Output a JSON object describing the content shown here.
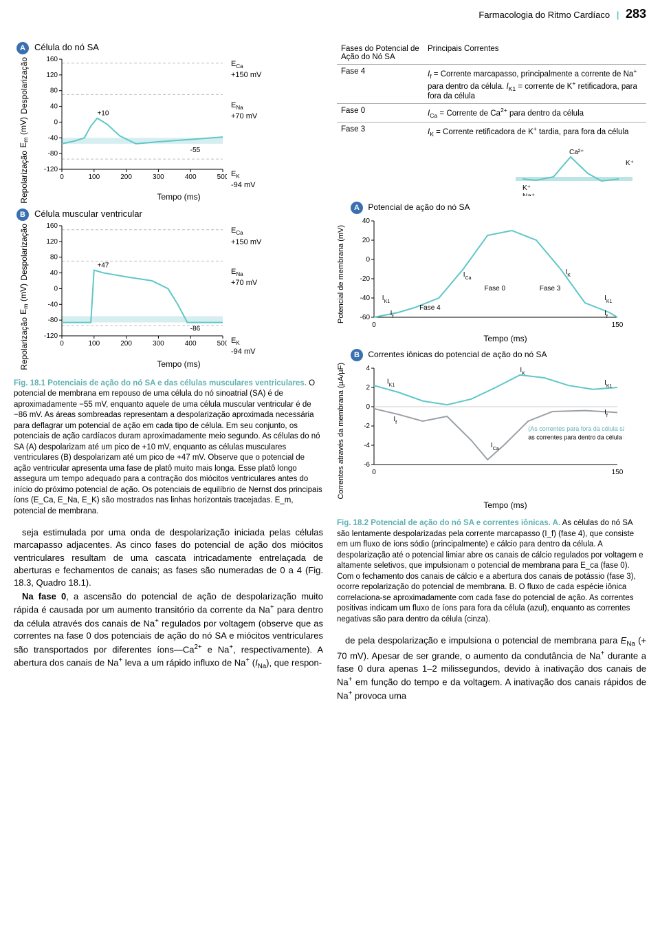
{
  "header": {
    "chapter": "Farmacologia do Ritmo Cardíaco",
    "page": "283"
  },
  "chartA": {
    "title": "Célula do nó SA",
    "ylabel": "E_m (mV)",
    "depol": "Despolarização",
    "repol": "Repolarização",
    "xlabel": "Tempo (ms)",
    "yTicks": [
      160,
      120,
      80,
      40,
      0,
      -40,
      -80,
      -120
    ],
    "xTicks": [
      0,
      100,
      200,
      300,
      400,
      500
    ],
    "peak": "+10",
    "rest": "-55",
    "ECa": "E_Ca +150 mV",
    "ENa": "E_Na +70 mV",
    "EK": "E_K -94 mV",
    "curve": [
      [
        0,
        -55
      ],
      [
        40,
        -48
      ],
      [
        70,
        -40
      ],
      [
        90,
        -10
      ],
      [
        110,
        10
      ],
      [
        140,
        -5
      ],
      [
        180,
        -35
      ],
      [
        230,
        -55
      ],
      [
        300,
        -50
      ],
      [
        400,
        -44
      ],
      [
        500,
        -38
      ]
    ],
    "curveColor": "#5fc7c7",
    "bandColor": "#d6eef0",
    "dashColor": "#bdbdbd"
  },
  "chartB": {
    "title": "Célula muscular ventricular",
    "peak": "+47",
    "rest": "-86",
    "curve": [
      [
        0,
        -86
      ],
      [
        90,
        -86
      ],
      [
        100,
        47
      ],
      [
        130,
        40
      ],
      [
        200,
        30
      ],
      [
        280,
        20
      ],
      [
        330,
        0
      ],
      [
        360,
        -40
      ],
      [
        390,
        -86
      ],
      [
        500,
        -86
      ]
    ],
    "ECa": "E_Ca +150 mV",
    "ENa": "E_Na +70 mV",
    "EK": "E_K -94 mV"
  },
  "phaseTable": {
    "head": [
      "Fases do Potencial de Ação do Nó SA",
      "Principais Correntes"
    ],
    "rows": [
      [
        "Fase 4",
        "I_f = Corrente marcapasso, principalmente a corrente de Na⁺ para dentro da célula. I_K1 = corrente de K⁺ retificadora, para fora da célula"
      ],
      [
        "Fase 0",
        "I_Ca = Corrente de Ca²⁺ para dentro da célula"
      ],
      [
        "Fase 3",
        "I_K = Corrente retificadora de K⁺ tardia, para fora da célula"
      ]
    ]
  },
  "ionBox": {
    "k": "K⁺",
    "na": "Na⁺",
    "ca": "Ca²⁺",
    "k2": "K⁺",
    "membraneY": 0,
    "outerColor": "#5fc7c7",
    "innerColor": "#bde4e5",
    "curve": [
      [
        0,
        0
      ],
      [
        20,
        -2
      ],
      [
        45,
        3
      ],
      [
        70,
        32
      ],
      [
        95,
        8
      ],
      [
        115,
        -3
      ],
      [
        140,
        0
      ]
    ]
  },
  "chartRA": {
    "title": "Potencial de ação do nó SA",
    "ylabel": "Potencial de membrana (mV)",
    "xlabel": "Tempo (ms)",
    "yTicks": [
      40,
      20,
      0,
      -20,
      -40,
      -60
    ],
    "xTicks": [
      0,
      150
    ],
    "curve": [
      [
        0,
        -60
      ],
      [
        15,
        -55
      ],
      [
        25,
        -50
      ],
      [
        40,
        -40
      ],
      [
        55,
        -10
      ],
      [
        70,
        25
      ],
      [
        85,
        30
      ],
      [
        100,
        20
      ],
      [
        115,
        -10
      ],
      [
        130,
        -45
      ],
      [
        145,
        -55
      ],
      [
        150,
        -60
      ]
    ],
    "curveColor": "#5fc7c7",
    "labels": {
      "IK1": "I_K1",
      "If": "I_f",
      "Fase4": "Fase 4",
      "ICa": "I_Ca",
      "Fase0": "Fase 0",
      "Fase3": "Fase 3",
      "IK": "I_K"
    }
  },
  "chartRB": {
    "title": "Correntes iônicas do potencial de ação do nó SA",
    "ylabel": "Correntes através da membrana (µA/µF)",
    "xlabel": "Tempo (ms)",
    "yTicks": [
      4,
      2,
      0,
      -2,
      -4,
      -6
    ],
    "xTicks": [
      0,
      150
    ],
    "curveBlue": [
      [
        0,
        2.2
      ],
      [
        15,
        1.5
      ],
      [
        30,
        0.6
      ],
      [
        45,
        0.2
      ],
      [
        60,
        0.8
      ],
      [
        75,
        2.0
      ],
      [
        90,
        3.3
      ],
      [
        105,
        3.0
      ],
      [
        120,
        2.2
      ],
      [
        135,
        1.8
      ],
      [
        150,
        2.0
      ]
    ],
    "curveGray": [
      [
        0,
        -0.2
      ],
      [
        15,
        -0.8
      ],
      [
        30,
        -1.5
      ],
      [
        45,
        -1.0
      ],
      [
        60,
        -3.5
      ],
      [
        70,
        -5.5
      ],
      [
        80,
        -4.0
      ],
      [
        95,
        -1.5
      ],
      [
        110,
        -0.5
      ],
      [
        130,
        -0.4
      ],
      [
        150,
        -0.6
      ]
    ],
    "notesBlue": "(As correntes para fora da célula são +;",
    "notesBlack": "as correntes para dentro da célula são -)",
    "labels": {
      "IK1": "I_K1",
      "If": "I_f",
      "IK": "I_K",
      "ICa": "I_Ca"
    }
  },
  "fig181": {
    "title": "Fig. 18.1 Potenciais de ação do nó SA e das células musculares ventriculares.",
    "text": " O potencial de membrana em repouso de uma célula do nó sinoatrial (SA) é de aproximadamente −55 mV, enquanto aquele de uma célula muscular ventricular é de −86 mV. As áreas sombreadas representam a despolarização aproximada necessária para deflagrar um potencial de ação em cada tipo de célula. Em seu conjunto, os potenciais de ação cardíacos duram aproximadamente meio segundo. As células do nó SA (A) despolarizam até um pico de +10 mV, enquanto as células musculares ventriculares (B) despolarizam até um pico de +47 mV. Observe que o potencial de ação ventricular apresenta uma fase de platô muito mais longa. Esse platô longo assegura um tempo adequado para a contração dos miócitos ventriculares antes do início do próximo potencial de ação. Os potenciais de equilíbrio de Nernst dos principais íons (E_Ca, E_Na, E_K) são mostrados nas linhas horizontais tracejadas. E_m, potencial de membrana."
  },
  "fig182": {
    "title": "Fig. 18.2 Potencial de ação do nó SA e correntes iônicas. A.",
    "text": " As células do nó SA são lentamente despolarizadas pela corrente marcapasso (I_f) (fase 4), que consiste em um fluxo de íons sódio (principalmente) e cálcio para dentro da célula. A despolarização até o potencial limiar abre os canais de cálcio regulados por voltagem e altamente seletivos, que impulsionam o potencial de membrana para E_ca (fase 0). Com o fechamento dos canais de cálcio e a abertura dos canais de potássio (fase 3), ocorre repolarização do potencial de membrana. B. O fluxo de cada espécie iônica correlaciona-se aproximadamente com cada fase do potencial de ação. As correntes positivas indicam um fluxo de íons para fora da célula (azul), enquanto as correntes negativas são para dentro da célula (cinza)."
  },
  "bodyLeft": {
    "p1": "seja estimulada por uma onda de despolarização iniciada pelas células marcapasso adjacentes. As cinco fases do potencial de ação dos miócitos ventriculares resultam de uma cascata intricadamente entrelaçada de aberturas e fechamentos de canais; as fases são numeradas de 0 a 4 (Fig. 18.3, Quadro 18.1).",
    "p2": "Na fase 0, a ascensão do potencial de ação de despolarização muito rápida é causada por um aumento transitório da corrente da Na⁺ para dentro da célula através dos canais de Na⁺ regulados por voltagem (observe que as correntes na fase 0 dos potenciais de ação do nó SA e miócitos ventriculares são transportados por diferentes íons—Ca²⁺ e Na⁺, respectivamente). A abertura dos canais de Na⁺ leva a um rápido influxo de Na⁺ (I_Na), que respon-"
  },
  "bodyRight": {
    "p1": "de pela despolarização e impulsiona o potencial de membrana para E_Na (+ 70 mV). Apesar de ser grande, o aumento da condutância de Na⁺ durante a fase 0 dura apenas 1–2 milissegundos, devido à inativação dos canais de Na⁺ em função do tempo e da voltagem. A inativação dos canais rápidos de Na⁺ provoca uma"
  }
}
